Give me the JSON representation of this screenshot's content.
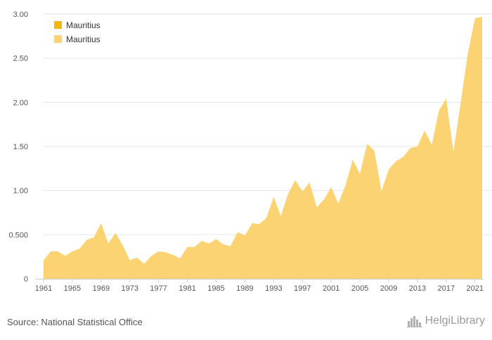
{
  "chart_data": {
    "type": "area",
    "series": [
      {
        "name": "Mauritius",
        "color": "#fcd373",
        "x": [
          1961,
          1962,
          1963,
          1964,
          1965,
          1966,
          1967,
          1968,
          1969,
          1970,
          1971,
          1972,
          1973,
          1974,
          1975,
          1976,
          1977,
          1978,
          1979,
          1980,
          1981,
          1982,
          1983,
          1984,
          1985,
          1986,
          1987,
          1988,
          1989,
          1990,
          1991,
          1992,
          1993,
          1994,
          1995,
          1996,
          1997,
          1998,
          1999,
          2000,
          2001,
          2002,
          2003,
          2004,
          2005,
          2006,
          2007,
          2008,
          2009,
          2010,
          2011,
          2012,
          2013,
          2014,
          2015,
          2016,
          2017,
          2018,
          2019,
          2020,
          2021,
          2022
        ],
        "values": [
          0.21,
          0.31,
          0.31,
          0.26,
          0.31,
          0.34,
          0.44,
          0.47,
          0.63,
          0.4,
          0.52,
          0.38,
          0.21,
          0.24,
          0.17,
          0.26,
          0.31,
          0.3,
          0.27,
          0.23,
          0.36,
          0.36,
          0.43,
          0.4,
          0.45,
          0.39,
          0.37,
          0.53,
          0.49,
          0.63,
          0.62,
          0.69,
          0.93,
          0.71,
          0.96,
          1.12,
          0.99,
          1.09,
          0.81,
          0.9,
          1.04,
          0.85,
          1.06,
          1.35,
          1.19,
          1.53,
          1.45,
          0.99,
          1.24,
          1.33,
          1.38,
          1.48,
          1.5,
          1.68,
          1.52,
          1.91,
          2.04,
          1.44,
          1.99,
          2.55,
          2.95,
          2.97
        ]
      }
    ],
    "legend": {
      "position": "top-left",
      "entries": [
        {
          "label": "Mauritius",
          "color": "#f5b50a"
        },
        {
          "label": "Mauritius",
          "color": "#fcd373"
        }
      ]
    },
    "x_ticks": [
      1961,
      1965,
      1969,
      1973,
      1977,
      1981,
      1985,
      1989,
      1993,
      1997,
      2001,
      2005,
      2009,
      2013,
      2017,
      2021
    ],
    "y_ticks": [
      {
        "value": 0,
        "label": "0"
      },
      {
        "value": 0.5,
        "label": "0.500"
      },
      {
        "value": 1.0,
        "label": "1.00"
      },
      {
        "value": 1.5,
        "label": "1.50"
      },
      {
        "value": 2.0,
        "label": "2.00"
      },
      {
        "value": 2.5,
        "label": "2.50"
      },
      {
        "value": 3.0,
        "label": "3.00"
      }
    ],
    "xlim": [
      1961,
      2022
    ],
    "ylim": [
      0,
      3.0
    ],
    "grid": true,
    "title": "",
    "xlabel": "",
    "ylabel": ""
  },
  "footer": {
    "source": "Source: National Statistical Office",
    "brand": "HelgiLibrary"
  },
  "brand_icon": "building-chart-icon",
  "colors": {
    "grid": "#e6e6e6",
    "axis": "#cccccc"
  }
}
